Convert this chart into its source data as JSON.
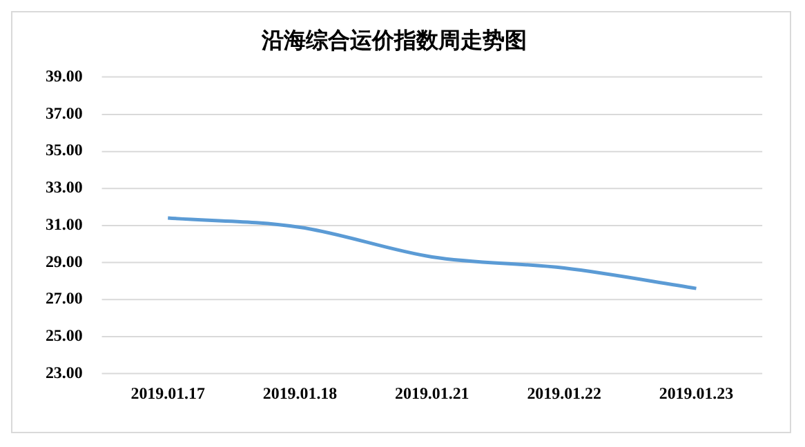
{
  "chart_data": {
    "type": "line",
    "title": "沿海综合运价指数周走势图",
    "categories": [
      "2019.01.17",
      "2019.01.18",
      "2019.01.21",
      "2019.01.22",
      "2019.01.23"
    ],
    "series": [
      {
        "color": "#5b9bd5",
        "values": [
          31.4,
          30.9,
          29.3,
          28.7,
          27.6
        ]
      }
    ],
    "ylim": [
      23,
      39
    ],
    "yticks": [
      {
        "value": 23,
        "label": "23.00"
      },
      {
        "value": 25,
        "label": "25.00"
      },
      {
        "value": 27,
        "label": "27.00"
      },
      {
        "value": 29,
        "label": "29.00"
      },
      {
        "value": 31,
        "label": "31.00"
      },
      {
        "value": 33,
        "label": "33.00"
      },
      {
        "value": 35,
        "label": "35.00"
      },
      {
        "value": 37,
        "label": "37.00"
      },
      {
        "value": 39,
        "label": "39.00"
      }
    ],
    "grid": "y",
    "marker": "none",
    "line_style": "solid",
    "legend": false
  }
}
